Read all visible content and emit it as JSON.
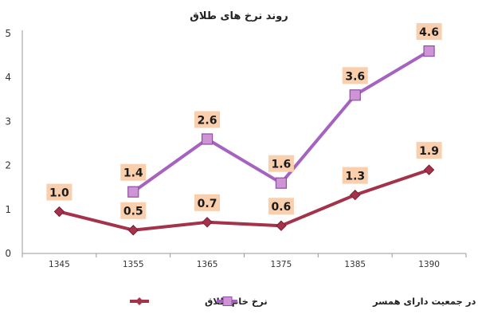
{
  "chart_data": {
    "type": "line",
    "title": "روند نرخ های طلاق",
    "categories": [
      "1345",
      "1355",
      "1365",
      "1375",
      "1385",
      "1390"
    ],
    "ylim": [
      0,
      5
    ],
    "yticks": [
      "0",
      "1",
      "2",
      "3",
      "4",
      "5"
    ],
    "grid": false,
    "legend_position": "bottom",
    "series": [
      {
        "name": "نرخ خام طلاق",
        "color": "#a3324a",
        "marker": "diamond",
        "values": [
          0.95,
          0.53,
          0.71,
          0.63,
          1.33,
          1.9
        ],
        "labels": [
          "1.0",
          "0.5",
          "0.7",
          "0.6",
          "1.3",
          "1.9"
        ]
      },
      {
        "name": "نرخ طلاق در جمعیت دارای همسر",
        "color": "#a562c0",
        "marker": "square",
        "values": [
          null,
          1.4,
          2.6,
          1.6,
          3.6,
          4.6
        ],
        "labels": [
          null,
          "1.4",
          "2.6",
          "1.6",
          "3.6",
          "4.6"
        ]
      }
    ],
    "label_background": "#f9cfae"
  }
}
